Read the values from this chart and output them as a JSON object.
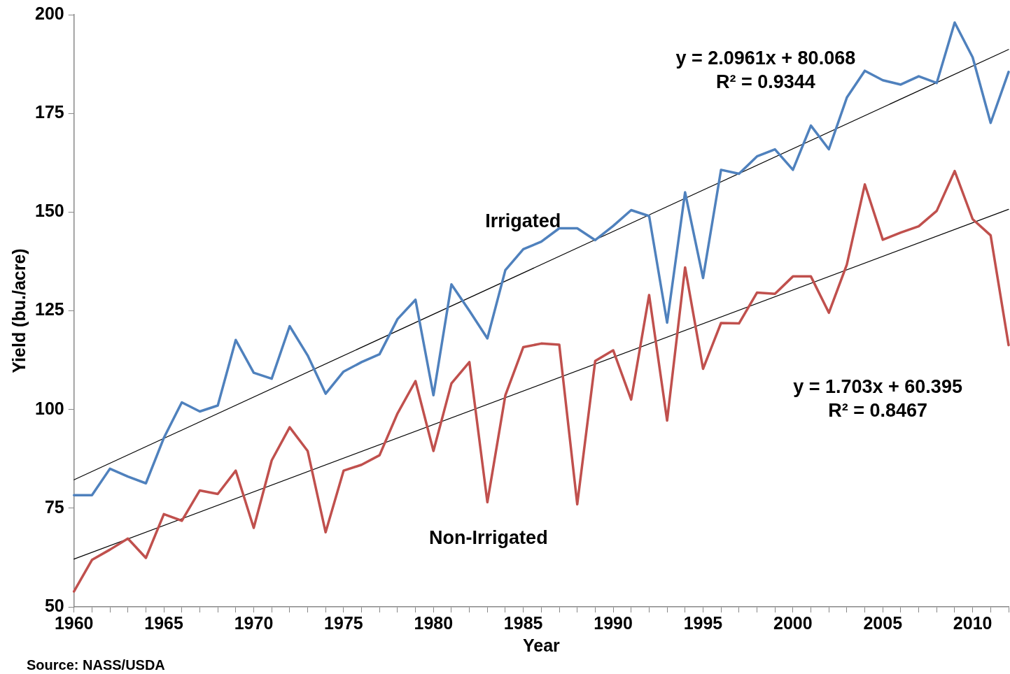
{
  "chart_data": {
    "type": "line",
    "xlabel": "Year",
    "ylabel": "Yield (bu./acre)",
    "x": [
      1960,
      1961,
      1962,
      1963,
      1964,
      1965,
      1966,
      1967,
      1968,
      1969,
      1970,
      1971,
      1972,
      1973,
      1974,
      1975,
      1976,
      1977,
      1978,
      1979,
      1980,
      1981,
      1982,
      1983,
      1984,
      1985,
      1986,
      1987,
      1988,
      1989,
      1990,
      1991,
      1992,
      1993,
      1994,
      1995,
      1996,
      1997,
      1998,
      1999,
      2000,
      2001,
      2002,
      2003,
      2004,
      2005,
      2006,
      2007,
      2008,
      2009,
      2010,
      2011,
      2012
    ],
    "series": [
      {
        "name": "Irrigated",
        "color": "#4f81bd",
        "values": [
          78.3,
          78.3,
          85,
          83,
          81.3,
          92.8,
          101.8,
          99.5,
          101,
          117.6,
          109.3,
          107.8,
          121.1,
          113.7,
          104,
          109.6,
          112,
          114,
          122.9,
          127.8,
          103.6,
          131.7,
          125,
          118,
          135.3,
          140.6,
          142.5,
          145.9,
          145.9,
          142.9,
          146.5,
          150.5,
          149,
          122,
          155,
          133.3,
          160.7,
          159.7,
          164.1,
          165.9,
          160.7,
          171.9,
          165.9,
          179,
          185.8,
          183.4,
          182.3,
          184.4,
          182.7,
          198,
          189.2,
          172.6,
          185.5
        ]
      },
      {
        "name": "Non-Irrigated",
        "color": "#c0504d",
        "values": [
          53.9,
          61.9,
          64.5,
          67.3,
          62.4,
          73.5,
          71.8,
          79.5,
          78.6,
          84.5,
          70,
          87.1,
          95.5,
          89.5,
          68.9,
          84.5,
          86,
          88.4,
          99,
          107.2,
          89.5,
          106.6,
          112,
          76.5,
          103.6,
          115.8,
          116.7,
          116.4,
          76,
          112.3,
          115,
          102.5,
          129,
          97.2,
          136,
          110.3,
          121.9,
          121.8,
          129.6,
          129.3,
          133.7,
          133.7,
          124.5,
          136.7,
          157,
          143,
          144.8,
          146.4,
          150.3,
          160.4,
          148.2,
          144.1,
          116.3
        ]
      },
      {
        "type": "line",
        "color": "#000000",
        "values": [
          82.2,
          null,
          null,
          null,
          null,
          null,
          null,
          null,
          null,
          null,
          null,
          null,
          null,
          null,
          null,
          null,
          null,
          null,
          null,
          null,
          null,
          null,
          null,
          null,
          null,
          null,
          null,
          null,
          null,
          null,
          null,
          null,
          null,
          null,
          null,
          null,
          null,
          null,
          null,
          null,
          null,
          null,
          null,
          null,
          null,
          null,
          null,
          null,
          null,
          null,
          null,
          null,
          191.2
        ]
      },
      {
        "type": "line",
        "color": "#000000",
        "values": [
          62.1,
          null,
          null,
          null,
          null,
          null,
          null,
          null,
          null,
          null,
          null,
          null,
          null,
          null,
          null,
          null,
          null,
          null,
          null,
          null,
          null,
          null,
          null,
          null,
          null,
          null,
          null,
          null,
          null,
          null,
          null,
          null,
          null,
          null,
          null,
          null,
          null,
          null,
          null,
          null,
          null,
          null,
          null,
          null,
          null,
          null,
          null,
          null,
          null,
          null,
          null,
          null,
          150.7
        ]
      }
    ],
    "xlim": [
      1960,
      2012
    ],
    "xticks": [
      1960,
      {
        "value": 1961,
        "label": null
      },
      {
        "value": 1962,
        "label": null
      },
      {
        "value": 1963,
        "label": null
      },
      {
        "value": 1964,
        "label": null
      },
      1965,
      {
        "value": 1966,
        "label": null
      },
      {
        "value": 1967,
        "label": null
      },
      {
        "value": 1968,
        "label": null
      },
      {
        "value": 1969,
        "label": null
      },
      1970,
      {
        "value": 1971,
        "label": null
      },
      {
        "value": 1972,
        "label": null
      },
      {
        "value": 1973,
        "label": null
      },
      {
        "value": 1974,
        "label": null
      },
      1975,
      {
        "value": 1976,
        "label": null
      },
      {
        "value": 1977,
        "label": null
      },
      {
        "value": 1978,
        "label": null
      },
      {
        "value": 1979,
        "label": null
      },
      1980,
      {
        "value": 1981,
        "label": null
      },
      {
        "value": 1982,
        "label": null
      },
      {
        "value": 1983,
        "label": null
      },
      {
        "value": 1984,
        "label": null
      },
      1985,
      {
        "value": 1986,
        "label": null
      },
      {
        "value": 1987,
        "label": null
      },
      {
        "value": 1988,
        "label": null
      },
      {
        "value": 1989,
        "label": null
      },
      1990,
      {
        "value": 1991,
        "label": null
      },
      {
        "value": 1992,
        "label": null
      },
      {
        "value": 1993,
        "label": null
      },
      {
        "value": 1994,
        "label": null
      },
      1995,
      {
        "value": 1996,
        "label": null
      },
      {
        "value": 1997,
        "label": null
      },
      {
        "value": 1998,
        "label": null
      },
      {
        "value": 1999,
        "label": null
      },
      2000,
      {
        "value": 2001,
        "label": null
      },
      {
        "value": 2002,
        "label": null
      },
      {
        "value": 2003,
        "label": null
      },
      {
        "value": 2004,
        "label": null
      },
      2005,
      {
        "value": 2006,
        "label": null
      },
      {
        "value": 2007,
        "label": null
      },
      {
        "value": 2008,
        "label": null
      },
      {
        "value": 2009,
        "label": null
      },
      2010,
      {
        "value": 2011,
        "label": null
      },
      {
        "value": 2012,
        "label": null
      }
    ],
    "ylim": [
      50,
      200
    ],
    "yticks": [
      50,
      75,
      100,
      125,
      150,
      175,
      200
    ],
    "grid": false,
    "legend": false,
    "marker": "none",
    "line_style": "solid",
    "annotations": [
      "y = 2.0961x + 80.068",
      "R² = 0.9344",
      "y = 1.703x + 60.395",
      "R² = 0.8467",
      "Source: NASS/USDA"
    ]
  }
}
